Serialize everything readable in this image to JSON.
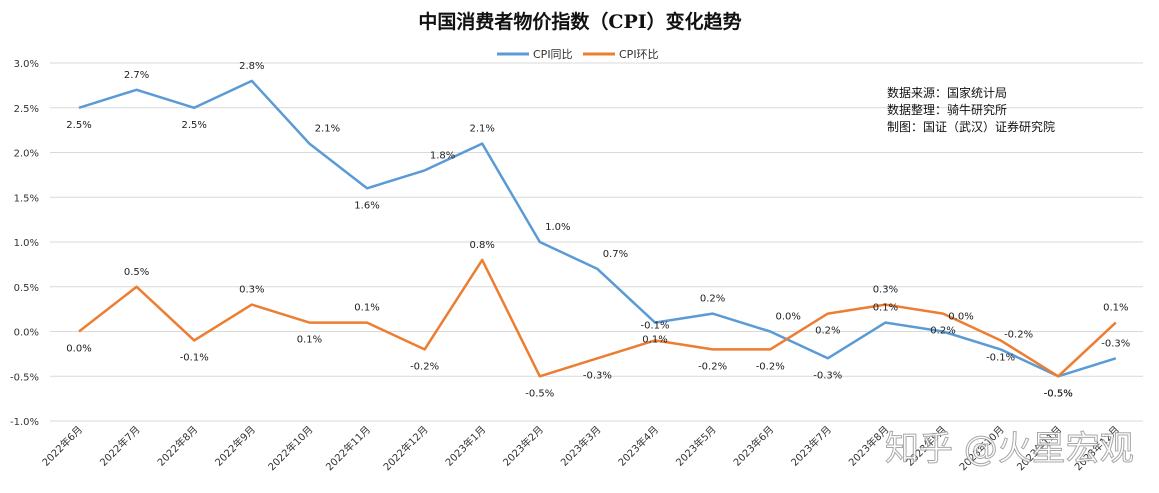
{
  "chart_data": {
    "type": "line",
    "title": "中国消费者物价指数（CPI）变化趋势",
    "categories": [
      "2022年6月",
      "2022年7月",
      "2022年8月",
      "2022年9月",
      "2022年10月",
      "2022年11月",
      "2022年12月",
      "2023年1月",
      "2023年2月",
      "2023年3月",
      "2023年4月",
      "2023年5月",
      "2023年6月",
      "2023年7月",
      "2023年8月",
      "2023年9月",
      "2023年10月",
      "2023年11月",
      "2023年12月"
    ],
    "series": [
      {
        "name": "CPI同比",
        "color": "#5B9BD5",
        "values": [
          2.5,
          2.7,
          2.5,
          2.8,
          2.1,
          1.6,
          1.8,
          2.1,
          1.0,
          0.7,
          0.1,
          0.2,
          0.0,
          -0.3,
          0.1,
          0.0,
          -0.2,
          -0.5,
          -0.3
        ],
        "labels": [
          "2.5%",
          "2.7%",
          "2.5%",
          "2.8%",
          "2.1%",
          "1.6%",
          "1.8%",
          "2.1%",
          "1.0%",
          "0.7%",
          "0.1%",
          "0.2%",
          "0.0%",
          "-0.3%",
          "0.1%",
          "0.0%",
          "-0.2%",
          "-0.5%",
          "-0.3%"
        ]
      },
      {
        "name": "CPI环比",
        "color": "#ED7D31",
        "values": [
          0.0,
          0.5,
          -0.1,
          0.3,
          0.1,
          0.1,
          -0.2,
          0.8,
          -0.5,
          -0.3,
          -0.1,
          -0.2,
          -0.2,
          0.2,
          0.3,
          0.2,
          -0.1,
          -0.5,
          0.1
        ],
        "labels": [
          "0.0%",
          "0.5%",
          "-0.1%",
          "0.3%",
          "0.1%",
          "0.1%",
          "-0.2%",
          "0.8%",
          "-0.5%",
          "-0.3%",
          "-0.1%",
          "-0.2%",
          "-0.2%",
          "0.2%",
          "0.3%",
          "0.2%",
          "-0.1%",
          "-0.5%",
          "0.1%"
        ]
      }
    ],
    "yticks": [
      "3.0%",
      "2.5%",
      "2.0%",
      "1.5%",
      "1.0%",
      "0.5%",
      "0.0%",
      "-0.5%",
      "-1.0%"
    ],
    "ylim": [
      -1.0,
      3.0
    ],
    "grid": true,
    "legend": "top-center"
  },
  "notes": [
    "数据来源：国家统计局",
    "数据整理：骑牛研究所",
    "制图：国证（武汉）证券研究院"
  ],
  "watermark": "知乎 @火星宏观"
}
